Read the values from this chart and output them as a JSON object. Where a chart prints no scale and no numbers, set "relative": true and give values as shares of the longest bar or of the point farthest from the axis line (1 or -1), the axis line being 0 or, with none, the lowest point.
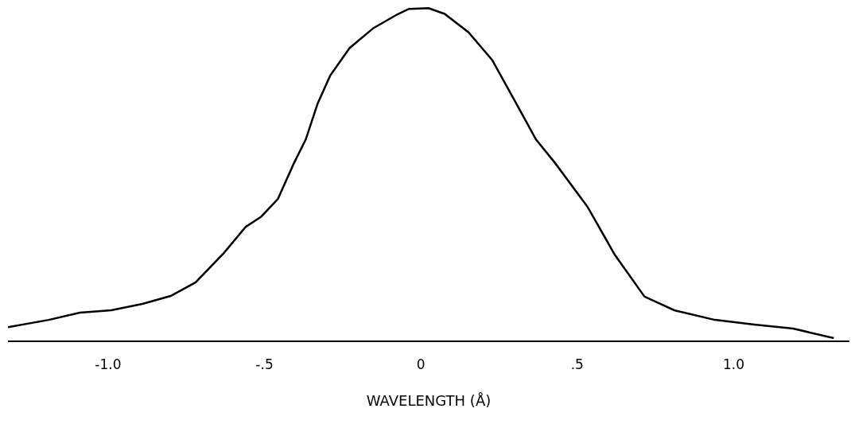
{
  "chart_data": {
    "type": "line",
    "relative": true,
    "xlabel": "WAVELENGTH (Å)",
    "color": "#000000",
    "x": [
      -1.32,
      -1.19,
      -1.09,
      -0.99,
      -0.89,
      -0.8,
      -0.72,
      -0.63,
      -0.56,
      -0.51,
      -0.457,
      -0.406,
      -0.368,
      -0.33,
      -0.29,
      -0.228,
      -0.152,
      -0.076,
      -0.038,
      0.025,
      0.076,
      0.152,
      0.228,
      0.305,
      0.368,
      0.43,
      0.533,
      0.62,
      0.715,
      0.81,
      0.94,
      1.066,
      1.19,
      1.32
    ],
    "values": [
      0.04,
      0.062,
      0.084,
      0.091,
      0.11,
      0.134,
      0.175,
      0.263,
      0.342,
      0.373,
      0.426,
      0.533,
      0.605,
      0.713,
      0.797,
      0.88,
      0.94,
      0.981,
      0.998,
      1.0,
      0.983,
      0.928,
      0.844,
      0.713,
      0.605,
      0.533,
      0.402,
      0.258,
      0.132,
      0.091,
      0.062,
      0.048,
      0.036,
      0.007
    ],
    "xlim": [
      -1.32,
      1.37
    ],
    "xticks": [
      {
        "value": -1.0,
        "label": "-1.0"
      },
      {
        "value": -0.5,
        "label": "-.5"
      },
      0,
      {
        "value": 0.5,
        "label": ".5"
      },
      {
        "value": 1.0,
        "label": "1.0"
      }
    ],
    "grid": false,
    "marker": "none",
    "line_style": "solid"
  }
}
